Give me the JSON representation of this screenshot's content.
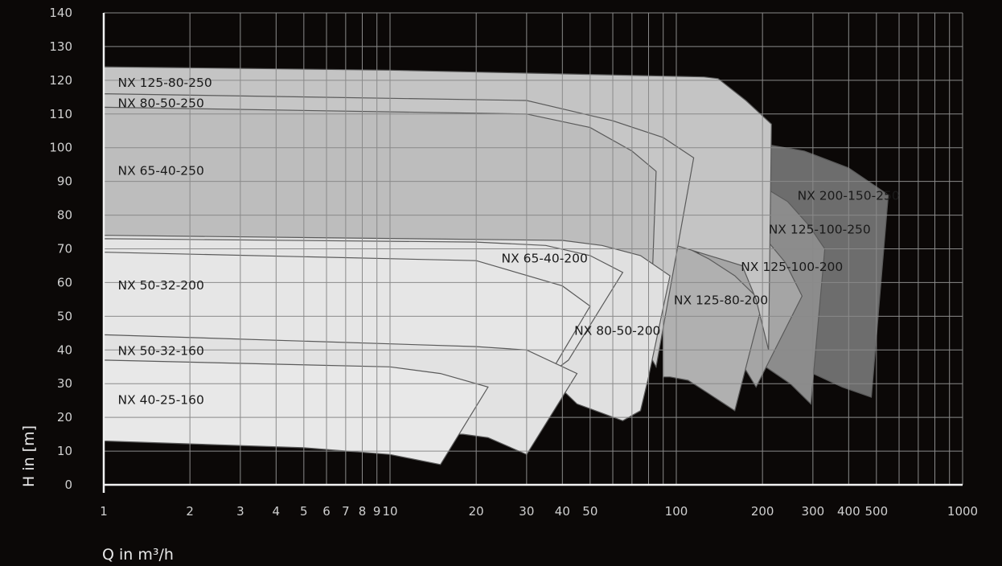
{
  "chart_data": {
    "type": "area",
    "xlabel": "Q in m³/h",
    "ylabel": "H in [m]",
    "x_scale": "log",
    "xlim": [
      1,
      1000
    ],
    "ylim": [
      0,
      140
    ],
    "grid": true,
    "x_ticks": [
      1,
      2,
      3,
      4,
      5,
      6,
      7,
      8,
      9,
      10,
      20,
      30,
      40,
      50,
      100,
      200,
      300,
      400,
      500,
      1000
    ],
    "y_ticks": [
      0,
      10,
      20,
      30,
      40,
      50,
      60,
      70,
      80,
      90,
      100,
      110,
      120,
      130,
      140
    ],
    "series": [
      {
        "name": "NX 200-150-250",
        "color": "#6d6d6d",
        "label_color": "#f2f2f2",
        "label_at": [
          265,
          84.5
        ],
        "points": [
          [
            205,
            101
          ],
          [
            280,
            99
          ],
          [
            400,
            94
          ],
          [
            550,
            86
          ],
          [
            480,
            26
          ],
          [
            380,
            29
          ],
          [
            300,
            33
          ],
          [
            260,
            36
          ],
          [
            205,
            38
          ]
        ]
      },
      {
        "name": "NX 125-100-250",
        "color": "#8c8c8c",
        "label_color": "#f2f2f2",
        "label_at": [
          210,
          74.5
        ],
        "points": [
          [
            205,
            88
          ],
          [
            245,
            84
          ],
          [
            290,
            77
          ],
          [
            330,
            70
          ],
          [
            295,
            24
          ],
          [
            250,
            30
          ],
          [
            205,
            35
          ]
        ]
      },
      {
        "name": "NX 125-100-200",
        "color": "#a5a5a5",
        "label_color": "#1a1a1a",
        "label_at": [
          168,
          63.5
        ],
        "points": [
          [
            120,
            78
          ],
          [
            155,
            78
          ],
          [
            175,
            76
          ],
          [
            205,
            73
          ],
          [
            240,
            66
          ],
          [
            275,
            56
          ],
          [
            190,
            29
          ],
          [
            175,
            34
          ],
          [
            155,
            39
          ],
          [
            120,
            45
          ]
        ]
      },
      {
        "name": "NX 125-80-200",
        "color": "#b0b0b0",
        "label_color": "#1a1a1a",
        "label_at": [
          98,
          53.5
        ],
        "points": [
          [
            90,
            73
          ],
          [
            105,
            71
          ],
          [
            130,
            67
          ],
          [
            160,
            62
          ],
          [
            200,
            54
          ],
          [
            160,
            22
          ],
          [
            130,
            27
          ],
          [
            110,
            31
          ],
          [
            95,
            32
          ],
          [
            90,
            32
          ]
        ]
      },
      {
        "name": "NX 125-80-250",
        "color": "#c4c4c4",
        "label_color": "#1a1a1a",
        "label_at": [
          1.12,
          118
        ],
        "points": [
          [
            1,
            124
          ],
          [
            10,
            123
          ],
          [
            125,
            121
          ],
          [
            140,
            120.5
          ],
          [
            175,
            114
          ],
          [
            215,
            107
          ],
          [
            210,
            40
          ],
          [
            190,
            55
          ],
          [
            170,
            65
          ],
          [
            100,
            71
          ],
          [
            1,
            73
          ]
        ]
      },
      {
        "name": "NX 80-50-250",
        "color": "#c6c6c6",
        "label_color": "#1a1a1a",
        "label_at": [
          1.12,
          112
        ],
        "points": [
          [
            1,
            116
          ],
          [
            30,
            114
          ],
          [
            60,
            108
          ],
          [
            90,
            103
          ],
          [
            115,
            97
          ],
          [
            85,
            35
          ],
          [
            70,
            48
          ],
          [
            50,
            60
          ],
          [
            1,
            70
          ]
        ]
      },
      {
        "name": "NX 65-40-250",
        "color": "#bdbdbd",
        "label_color": "#1a1a1a",
        "label_at": [
          1.12,
          92
        ],
        "points": [
          [
            1,
            112
          ],
          [
            30,
            110
          ],
          [
            50,
            106
          ],
          [
            70,
            99
          ],
          [
            85,
            93
          ],
          [
            80,
            31
          ],
          [
            60,
            42
          ],
          [
            45,
            52
          ],
          [
            30,
            62
          ],
          [
            1,
            73
          ]
        ]
      },
      {
        "name": "NX 80-50-200",
        "color": "#e0e0e0",
        "label_color": "#1a1a1a",
        "label_at": [
          44,
          44.5
        ],
        "points": [
          [
            1,
            74
          ],
          [
            40,
            72.5
          ],
          [
            55,
            71
          ],
          [
            75,
            68
          ],
          [
            95,
            62
          ],
          [
            80,
            32
          ],
          [
            75,
            22
          ],
          [
            65,
            19
          ],
          [
            45,
            24
          ],
          [
            38,
            30
          ],
          [
            1,
            40
          ]
        ]
      },
      {
        "name": "NX 65-40-200",
        "color": "#e4e4e4",
        "label_color": "#1a1a1a",
        "label_at": [
          24.5,
          66
        ],
        "points": [
          [
            1,
            73
          ],
          [
            20,
            72
          ],
          [
            35,
            71
          ],
          [
            50,
            68
          ],
          [
            65,
            63
          ],
          [
            42,
            37
          ],
          [
            35,
            32
          ],
          [
            1,
            38
          ]
        ]
      },
      {
        "name": "NX 50-32-200",
        "color": "#e6e6e6",
        "label_color": "#1a1a1a",
        "label_at": [
          1.12,
          58
        ],
        "points": [
          [
            1,
            69
          ],
          [
            20,
            66.5
          ],
          [
            40,
            59
          ],
          [
            50,
            53
          ],
          [
            38,
            36
          ],
          [
            1,
            42
          ]
        ]
      },
      {
        "name": "NX 50-32-160",
        "color": "#e2e2e2",
        "label_color": "#1a1a1a",
        "label_at": [
          1.12,
          38.5
        ],
        "points": [
          [
            1,
            44.5
          ],
          [
            20,
            41
          ],
          [
            30,
            40
          ],
          [
            45,
            33
          ],
          [
            30,
            9
          ],
          [
            22,
            14
          ],
          [
            18,
            15
          ],
          [
            1,
            16
          ]
        ]
      },
      {
        "name": "NX 40-25-160",
        "color": "#e8e8e8",
        "label_color": "#1a1a1a",
        "label_at": [
          1.12,
          24
        ],
        "points": [
          [
            1,
            37
          ],
          [
            10,
            35
          ],
          [
            15,
            33
          ],
          [
            22,
            29
          ],
          [
            15,
            6
          ],
          [
            10,
            9
          ],
          [
            5,
            11
          ],
          [
            1,
            13
          ]
        ]
      }
    ]
  }
}
